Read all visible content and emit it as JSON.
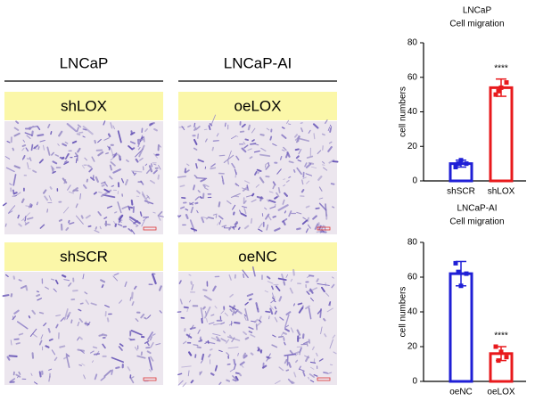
{
  "panels": {
    "columns": [
      "LNCaP",
      "LNCaP-AI"
    ],
    "images": [
      [
        "shLOX",
        "oeLOX"
      ],
      [
        "shSCR",
        "oeNC"
      ]
    ]
  },
  "chart_data": [
    {
      "type": "bar",
      "title": "LNCaP",
      "subtitle": "Cell migration",
      "y_label": "cell numbers",
      "categories": [
        "shSCR",
        "shLOX"
      ],
      "values": [
        10,
        54
      ],
      "errors": [
        2,
        5
      ],
      "points": [
        [
          8,
          10,
          12,
          10
        ],
        [
          50,
          57,
          54,
          52
        ]
      ],
      "colors": [
        "#1f1fd6",
        "#e8191c"
      ],
      "ylim": [
        0,
        80
      ],
      "yticks": [
        0,
        20,
        40,
        60,
        80
      ],
      "significance": {
        "category": "shLOX",
        "label": "****"
      }
    },
    {
      "type": "bar",
      "title": "LNCaP-AI",
      "subtitle": "Cell migration",
      "y_label": "cell numbers",
      "categories": [
        "oeNC",
        "oeLOX"
      ],
      "values": [
        62,
        16
      ],
      "errors": [
        7,
        4
      ],
      "points": [
        [
          68,
          62,
          55,
          63
        ],
        [
          20,
          14,
          17,
          12
        ]
      ],
      "colors": [
        "#1f1fd6",
        "#e8191c"
      ],
      "ylim": [
        0,
        80
      ],
      "yticks": [
        0,
        20,
        40,
        60,
        80
      ],
      "significance": {
        "category": "oeLOX",
        "label": "****"
      }
    }
  ]
}
